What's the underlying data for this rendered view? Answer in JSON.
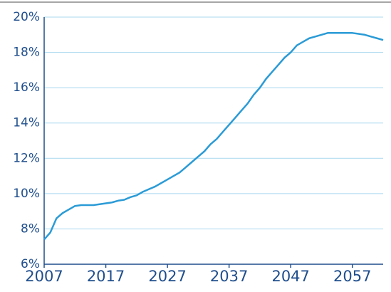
{
  "chart_data": {
    "type": "line",
    "x": [
      2007,
      2008,
      2009,
      2010,
      2011,
      2012,
      2013,
      2014,
      2015,
      2016,
      2017,
      2018,
      2019,
      2020,
      2021,
      2022,
      2023,
      2024,
      2025,
      2026,
      2027,
      2028,
      2029,
      2030,
      2031,
      2032,
      2033,
      2034,
      2035,
      2036,
      2037,
      2038,
      2039,
      2040,
      2041,
      2042,
      2043,
      2044,
      2045,
      2046,
      2047,
      2048,
      2049,
      2050,
      2051,
      2052,
      2053,
      2054,
      2055,
      2056,
      2057,
      2058,
      2059,
      2060,
      2061,
      2062
    ],
    "values": [
      7.4,
      7.8,
      8.6,
      8.9,
      9.1,
      9.3,
      9.35,
      9.35,
      9.35,
      9.4,
      9.45,
      9.5,
      9.6,
      9.65,
      9.8,
      9.9,
      10.1,
      10.25,
      10.4,
      10.6,
      10.8,
      11.0,
      11.2,
      11.5,
      11.8,
      12.1,
      12.4,
      12.8,
      13.1,
      13.5,
      13.9,
      14.3,
      14.7,
      15.1,
      15.6,
      16.0,
      16.5,
      16.9,
      17.3,
      17.7,
      18.0,
      18.4,
      18.6,
      18.8,
      18.9,
      19.0,
      19.1,
      19.1,
      19.1,
      19.1,
      19.1,
      19.05,
      19.0,
      18.9,
      18.8,
      18.7
    ],
    "color": "#2b9bd6",
    "xlim": [
      2007,
      2062
    ],
    "xticks": [
      2007,
      2017,
      2027,
      2037,
      2047,
      2057
    ],
    "ylim": [
      6,
      20
    ],
    "yticks": [
      {
        "value": 6,
        "label": "6%"
      },
      {
        "value": 8,
        "label": "8%"
      },
      {
        "value": 10,
        "label": "10%"
      },
      {
        "value": 12,
        "label": "12%"
      },
      {
        "value": 14,
        "label": "14%"
      },
      {
        "value": 16,
        "label": "16%"
      },
      {
        "value": 18,
        "label": "18%"
      },
      {
        "value": 20,
        "label": "20%"
      }
    ],
    "grid": true
  }
}
